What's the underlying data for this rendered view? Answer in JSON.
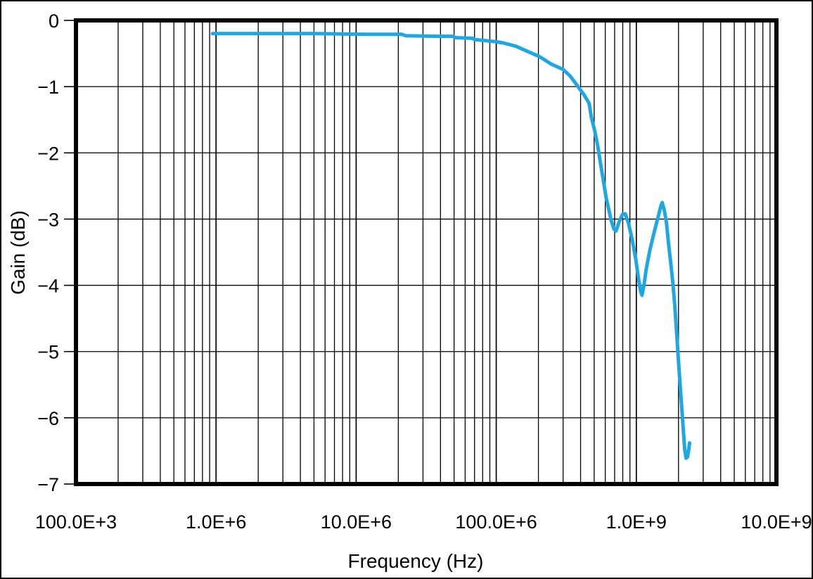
{
  "figure": {
    "background": "#ffffff",
    "border_color": "#000000",
    "grid_color": "#000000",
    "frame_color": "#000000"
  },
  "chart_data": {
    "type": "line",
    "title": "",
    "xlabel": "Frequency (Hz)",
    "ylabel": "Gain (dB)",
    "x_scale": "log",
    "xlim": [
      100000,
      10000000000
    ],
    "ylim": [
      -7,
      0
    ],
    "grid": true,
    "legend": "none",
    "x_ticks": [
      {
        "value": 100000,
        "label": "100.0E+3"
      },
      {
        "value": 1000000,
        "label": "1.0E+6"
      },
      {
        "value": 10000000,
        "label": "10.0E+6"
      },
      {
        "value": 100000000,
        "label": "100.0E+6"
      },
      {
        "value": 1000000000,
        "label": "1.0E+9"
      },
      {
        "value": 10000000000,
        "label": "10.0E+9"
      }
    ],
    "y_ticks": [
      {
        "value": 0,
        "label": "0"
      },
      {
        "value": -1,
        "label": "−1"
      },
      {
        "value": -2,
        "label": "−2"
      },
      {
        "value": -3,
        "label": "−3"
      },
      {
        "value": -4,
        "label": "−4"
      },
      {
        "value": -5,
        "label": "−5"
      },
      {
        "value": -6,
        "label": "−6"
      },
      {
        "value": -7,
        "label": "−7"
      }
    ],
    "series": [
      {
        "name": "gain",
        "color": "#1FA7E4",
        "line_width": 5,
        "points_hz_db": [
          [
            944000,
            -0.2
          ],
          [
            1850000,
            -0.2
          ],
          [
            5200000,
            -0.2
          ],
          [
            11800000,
            -0.21
          ],
          [
            21200000,
            -0.21
          ],
          [
            22500000,
            -0.23
          ],
          [
            37400000,
            -0.24
          ],
          [
            49500000,
            -0.24
          ],
          [
            50500000,
            -0.26
          ],
          [
            67500000,
            -0.27
          ],
          [
            70000000,
            -0.29
          ],
          [
            98000000,
            -0.32
          ],
          [
            112000000,
            -0.34
          ],
          [
            138000000,
            -0.39
          ],
          [
            168000000,
            -0.47
          ],
          [
            205000000,
            -0.55
          ],
          [
            247000000,
            -0.66
          ],
          [
            300000000,
            -0.74
          ],
          [
            337000000,
            -0.84
          ],
          [
            378000000,
            -0.98
          ],
          [
            425000000,
            -1.13
          ],
          [
            460000000,
            -1.25
          ],
          [
            477000000,
            -1.46
          ],
          [
            505000000,
            -1.67
          ],
          [
            529000000,
            -1.88
          ],
          [
            554000000,
            -2.15
          ],
          [
            581000000,
            -2.41
          ],
          [
            609000000,
            -2.68
          ],
          [
            638000000,
            -2.87
          ],
          [
            661000000,
            -3.02
          ],
          [
            692000000,
            -3.15
          ],
          [
            717000000,
            -3.18
          ],
          [
            751000000,
            -3.05
          ],
          [
            795000000,
            -2.93
          ],
          [
            833000000,
            -2.92
          ],
          [
            881000000,
            -3.07
          ],
          [
            934000000,
            -3.31
          ],
          [
            990000000,
            -3.6
          ],
          [
            1036000000,
            -3.9
          ],
          [
            1073000000,
            -4.09
          ],
          [
            1097000000,
            -4.15
          ],
          [
            1133000000,
            -4.0
          ],
          [
            1180000000,
            -3.74
          ],
          [
            1249000000,
            -3.47
          ],
          [
            1336000000,
            -3.21
          ],
          [
            1430000000,
            -2.97
          ],
          [
            1497000000,
            -2.8
          ],
          [
            1530000000,
            -2.75
          ],
          [
            1585000000,
            -2.87
          ],
          [
            1641000000,
            -3.05
          ],
          [
            1698000000,
            -3.37
          ],
          [
            1758000000,
            -3.65
          ],
          [
            1820000000,
            -3.95
          ],
          [
            1884000000,
            -4.32
          ],
          [
            1928000000,
            -4.64
          ],
          [
            1973000000,
            -4.96
          ],
          [
            2019000000,
            -5.28
          ],
          [
            2066000000,
            -5.58
          ],
          [
            2115000000,
            -5.88
          ],
          [
            2164000000,
            -6.18
          ],
          [
            2215000000,
            -6.48
          ],
          [
            2267000000,
            -6.61
          ],
          [
            2320000000,
            -6.59
          ],
          [
            2374000000,
            -6.46
          ],
          [
            2400000000,
            -6.38
          ]
        ]
      }
    ]
  }
}
